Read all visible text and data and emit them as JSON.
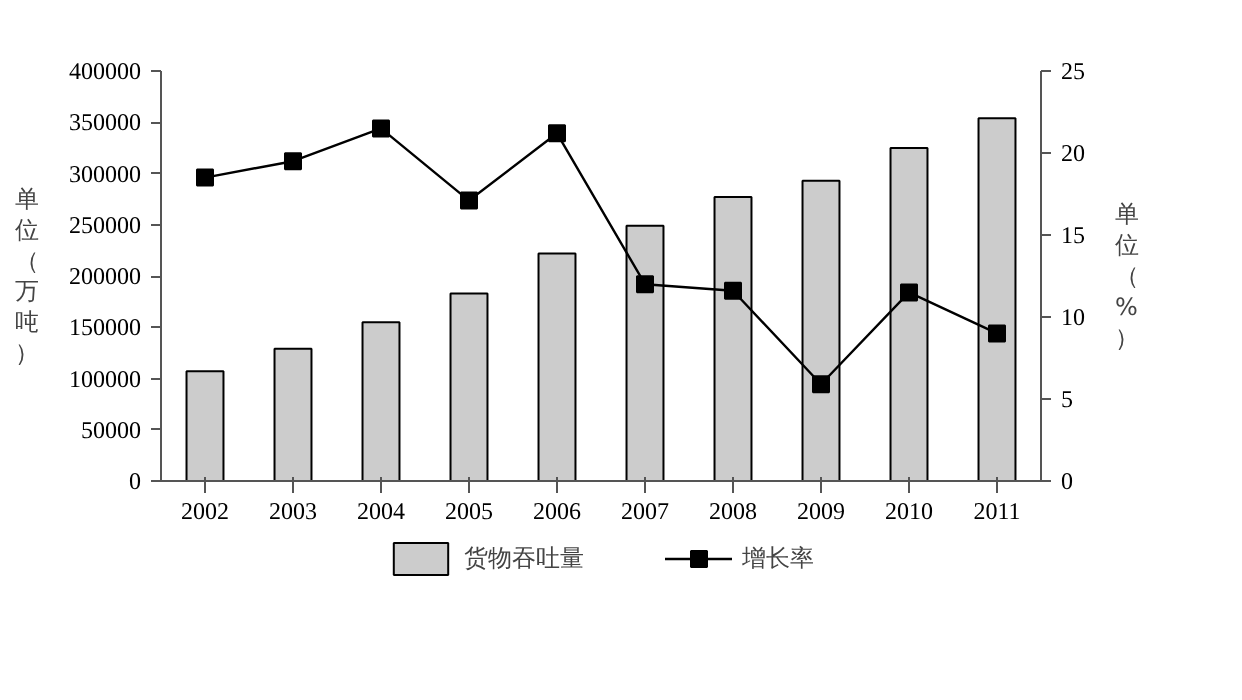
{
  "chart_data": {
    "type": "bar",
    "ylabel": "单位（万吨）",
    "y2label": "单位（%）",
    "categories": [
      "2002",
      "2003",
      "2004",
      "2005",
      "2006",
      "2007",
      "2008",
      "2009",
      "2010",
      "2011"
    ],
    "series": [
      {
        "name": "货物吞吐量",
        "color": "#cccccc",
        "values": [
          107000,
          129000,
          155000,
          183000,
          222000,
          249000,
          277000,
          293000,
          325000,
          354000
        ]
      },
      {
        "name": "增长率",
        "type": "line",
        "axis": "y2",
        "color": "#000000",
        "marker": "square",
        "values": [
          18.5,
          19.5,
          21.5,
          17.1,
          21.2,
          12.0,
          11.6,
          5.9,
          11.5,
          9.0
        ]
      }
    ],
    "ylim": [
      0,
      400000
    ],
    "yticks": [
      0,
      50000,
      100000,
      150000,
      200000,
      250000,
      300000,
      350000,
      400000
    ],
    "y2lim": [
      0,
      25
    ],
    "y2ticks": [
      0,
      5,
      10,
      15,
      20,
      25
    ],
    "grid": false,
    "legend": "bottom"
  }
}
